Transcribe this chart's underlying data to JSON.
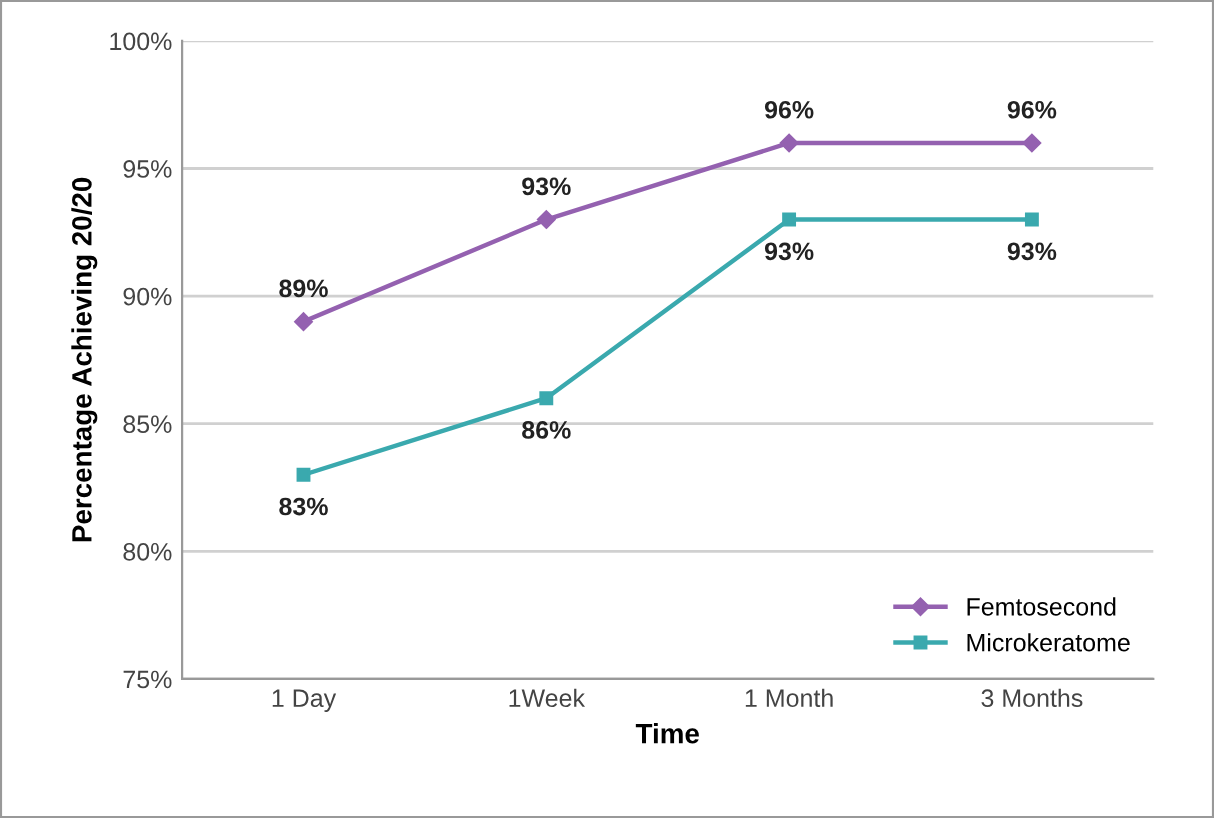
{
  "chart_data": {
    "type": "line",
    "xlabel": "Time",
    "ylabel": "Percentage Achieving 20/20",
    "categories": [
      "1 Day",
      "1Week",
      "1 Month",
      "3 Months"
    ],
    "series": [
      {
        "name": "Femtosecond",
        "color": "#9461b0",
        "marker": "diamond",
        "values": [
          89,
          93,
          96,
          96
        ],
        "value_labels": [
          "89%",
          "93%",
          "96%",
          "96%"
        ]
      },
      {
        "name": "Microkeratome",
        "color": "#3aa9ae",
        "marker": "square",
        "values": [
          83,
          86,
          93,
          93
        ],
        "value_labels": [
          "83%",
          "86%",
          "93%",
          "93%"
        ]
      }
    ],
    "ylim": [
      75,
      100
    ],
    "yticks": [
      {
        "value": 75,
        "label": "75%"
      },
      {
        "value": 80,
        "label": "80%"
      },
      {
        "value": 85,
        "label": "85%"
      },
      {
        "value": 90,
        "label": "90%"
      },
      {
        "value": 95,
        "label": "95%"
      },
      {
        "value": 100,
        "label": "100%"
      }
    ],
    "grid": "y",
    "legend": "bottom right",
    "line_style": "solid"
  }
}
